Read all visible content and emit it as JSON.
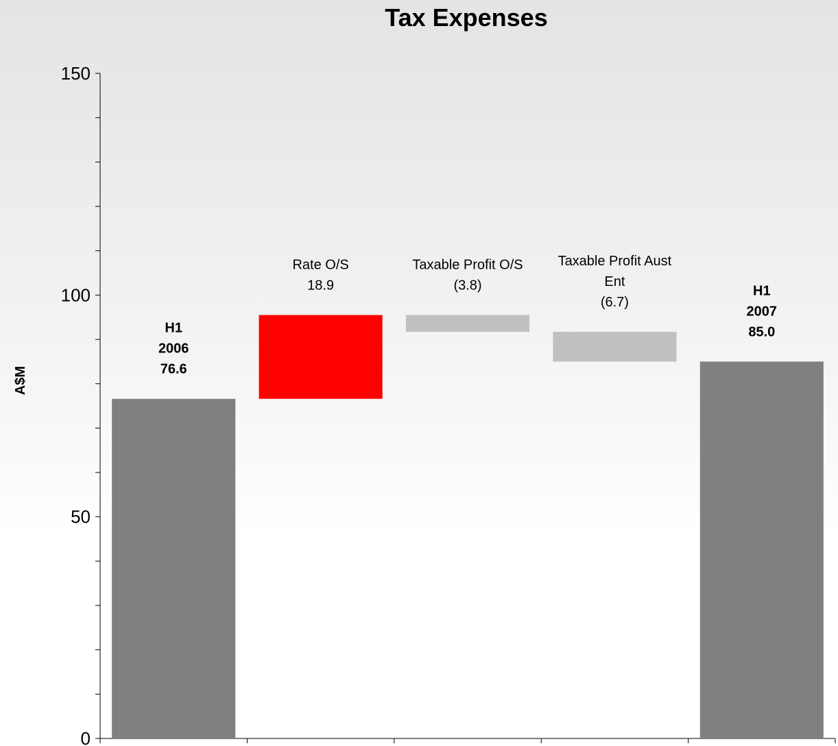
{
  "chart_data": {
    "type": "waterfall",
    "title": "Tax Expenses",
    "ylabel": "A$M",
    "ylim": [
      0,
      150
    ],
    "major_ticks": [
      0,
      50,
      100,
      150
    ],
    "minor_tick_step": 10,
    "bars": [
      {
        "kind": "total",
        "value": 76.6,
        "label_lines": [
          "H1",
          "2006",
          "76.6"
        ],
        "color": "#808080",
        "bold": true
      },
      {
        "kind": "delta",
        "value": 18.9,
        "label_lines": [
          "Rate O/S",
          "18.9"
        ],
        "color": "#ff0000",
        "bold": false
      },
      {
        "kind": "delta",
        "value": -3.8,
        "label_lines": [
          "Taxable Profit O/S",
          "(3.8)"
        ],
        "color": "#c0c0c0",
        "bold": false
      },
      {
        "kind": "delta",
        "value": -6.7,
        "label_lines": [
          "Taxable Profit Aust",
          "Ent",
          "(6.7)"
        ],
        "color": "#c0c0c0",
        "bold": false
      },
      {
        "kind": "total",
        "value": 85.0,
        "label_lines": [
          "H1",
          "2007",
          "85.0"
        ],
        "color": "#808080",
        "bold": true
      }
    ]
  }
}
